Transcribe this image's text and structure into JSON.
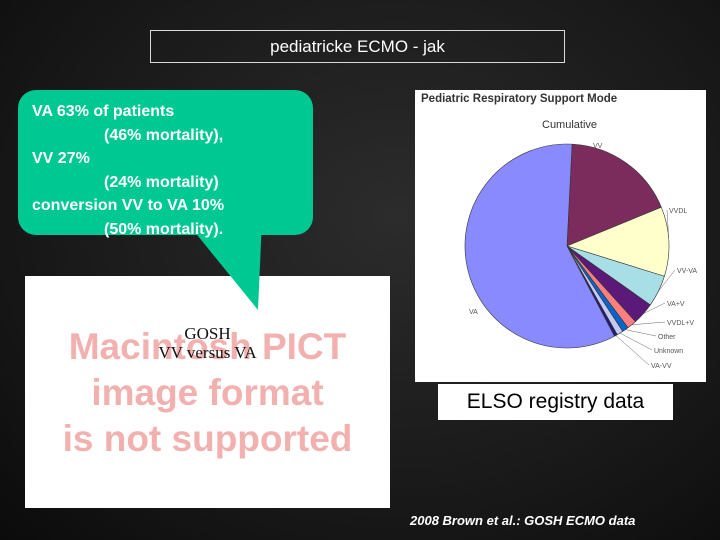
{
  "slide": {
    "title": "pediatricke ECMO - jak",
    "callout_lines": [
      "VA 63% of patients",
      "(46% mortality),",
      "VV 27%",
      "(24% mortality)",
      "conversion VV to VA 10%",
      "(50% mortality)."
    ],
    "pict_placeholder": [
      "Macintosh PICT",
      "image format",
      "is not supported"
    ],
    "pict_label": [
      "GOSH",
      "VV versus VA"
    ],
    "elso_label": "ELSO registry data",
    "footer": "2008 Brown et al.: GOSH ECMO data",
    "callout_color": "#00c893"
  },
  "chart_data": {
    "type": "pie",
    "title": "Pediatric Respiratory Support Mode",
    "subtitle": "Cumulative",
    "slices": [
      {
        "label": "VV",
        "value": 18,
        "color": "#7b2c5c"
      },
      {
        "label": "VVDL",
        "value": 11,
        "color": "#ffffcc"
      },
      {
        "label": "VV-VA",
        "value": 5,
        "color": "#a8dfe6"
      },
      {
        "label": "VA+V",
        "value": 3.5,
        "color": "#5b1a7a"
      },
      {
        "label": "VVDL+V",
        "value": 1.5,
        "color": "#ff7f7f"
      },
      {
        "label": "Other",
        "value": 1,
        "color": "#0066cc"
      },
      {
        "label": "Unknown",
        "value": 1,
        "color": "#c8c8f0"
      },
      {
        "label": "VA-VV",
        "value": 0.5,
        "color": "#1f1f7a"
      },
      {
        "label": "VA",
        "value": 58.5,
        "color": "#8a8aff"
      }
    ]
  }
}
